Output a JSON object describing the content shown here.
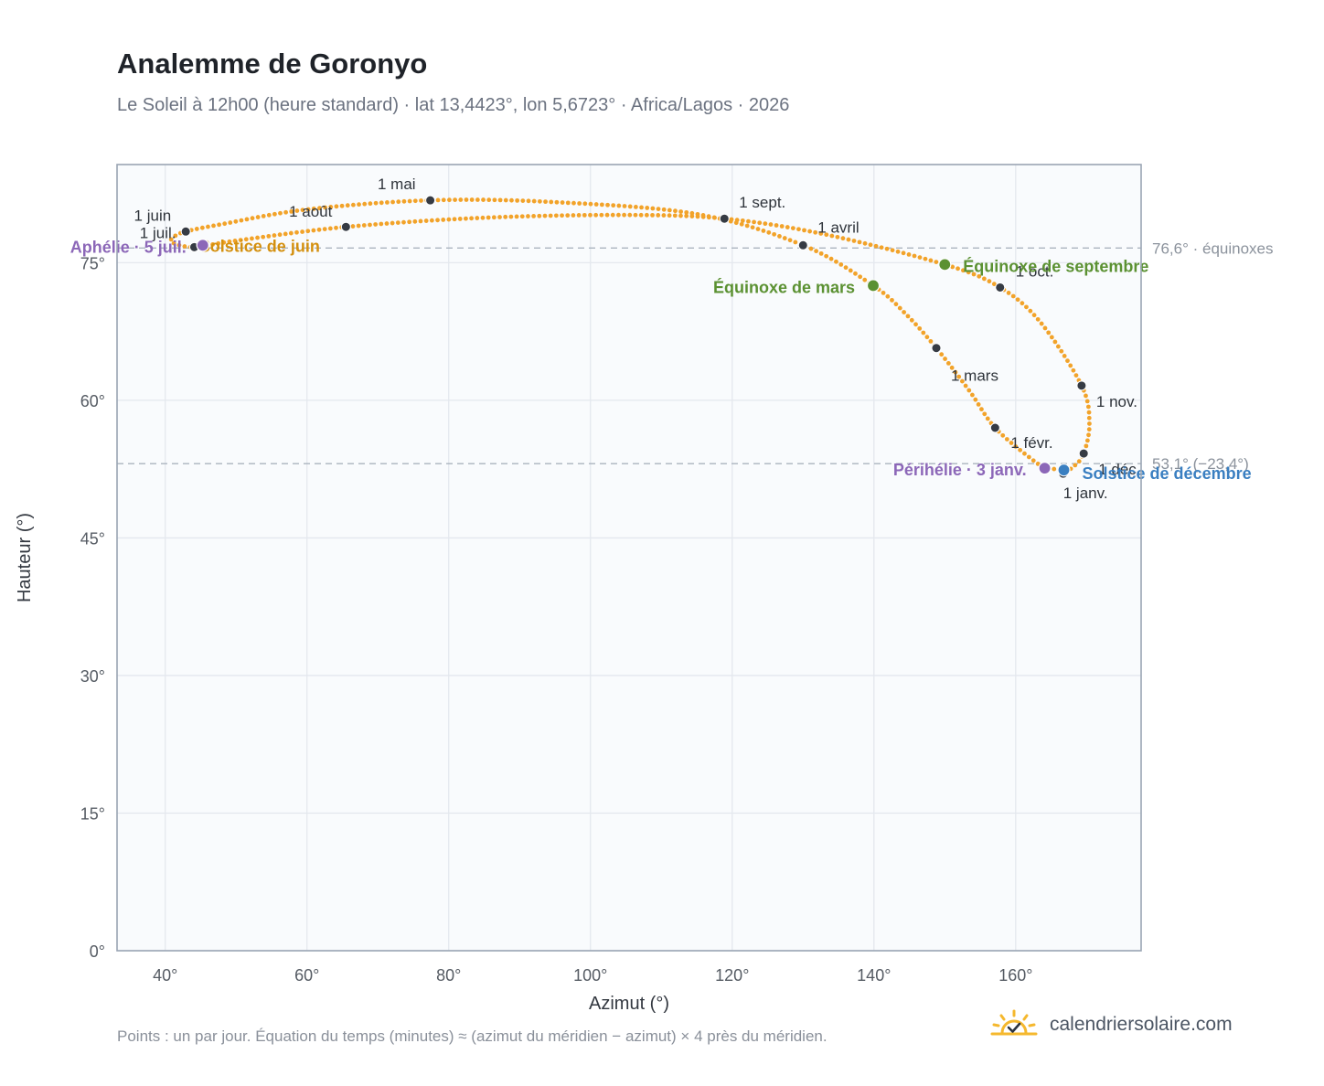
{
  "title": "Analemme de Goronyo",
  "subtitle": "Le Soleil à 12h00 (heure standard) · lat 13,4423°, lon 5,6723° · Africa/Lagos · 2026",
  "footnote": "Points : un par jour. Équation du temps (minutes) ≈ (azimut du méridien − azimut) × 4 près du méridien.",
  "brand": {
    "name": "calendriersolaire.com",
    "icon": "sun-check-icon"
  },
  "colors": {
    "curve": "#f2a32a",
    "month_marker": "#363b44",
    "equinox": "#5b9132",
    "june_solstice": "#d4900f",
    "december_solstice": "#3a7fc1",
    "apsis": "#8c67b8",
    "reference_line": "#aab4bf"
  },
  "chart_data": {
    "type": "scatter",
    "xlabel": "Azimut (°)",
    "ylabel": "Hauteur (°)",
    "xlim": [
      33.2,
      177.7
    ],
    "ylim": [
      0,
      85.7
    ],
    "xticks": [
      40,
      60,
      80,
      100,
      120,
      140,
      160
    ],
    "yticks": [
      0,
      15,
      30,
      45,
      60,
      75
    ],
    "x_tick_labels": [
      "40°",
      "60°",
      "80°",
      "100°",
      "120°",
      "140°",
      "160°"
    ],
    "y_tick_labels": [
      "0°",
      "15°",
      "30°",
      "45°",
      "60°",
      "75°"
    ],
    "grid": true,
    "reference_lines": [
      {
        "y": 76.6,
        "label": "76,6° · équinoxes"
      },
      {
        "y": 53.1,
        "label": "53,1° (−23,4°)"
      }
    ],
    "month_markers": [
      {
        "label": "1 janv.",
        "azimuth": 166.7,
        "altitude": 52.0
      },
      {
        "label": "1 févr.",
        "azimuth": 157.1,
        "altitude": 57.0
      },
      {
        "label": "1 mars",
        "azimuth": 148.8,
        "altitude": 65.7
      },
      {
        "label": "1 avril",
        "azimuth": 130.0,
        "altitude": 76.9
      },
      {
        "label": "1 mai",
        "azimuth": 77.4,
        "altitude": 81.8
      },
      {
        "label": "1 juin",
        "azimuth": 42.9,
        "altitude": 78.4
      },
      {
        "label": "1 juil.",
        "azimuth": 44.1,
        "altitude": 76.7
      },
      {
        "label": "1 août",
        "azimuth": 65.5,
        "altitude": 78.9
      },
      {
        "label": "1 sept.",
        "azimuth": 118.9,
        "altitude": 79.8
      },
      {
        "label": "1 oct.",
        "azimuth": 157.8,
        "altitude": 72.3
      },
      {
        "label": "1 nov.",
        "azimuth": 169.3,
        "altitude": 61.6
      },
      {
        "label": "1 déc.",
        "azimuth": 169.6,
        "altitude": 54.2
      }
    ],
    "events": [
      {
        "label": "Équinoxe de mars",
        "azimuth": 139.9,
        "altitude": 72.5,
        "color_key": "equinox"
      },
      {
        "label": "Équinoxe de septembre",
        "azimuth": 150.0,
        "altitude": 74.8,
        "color_key": "equinox"
      },
      {
        "label": "Solstice de juin",
        "azimuth": 45.3,
        "altitude": 76.9,
        "color_key": "june_solstice"
      },
      {
        "label": "Solstice de décembre",
        "azimuth": 166.8,
        "altitude": 52.4,
        "color_key": "december_solstice"
      },
      {
        "label": "Périhélie · 3 janv.",
        "azimuth": 164.1,
        "altitude": 52.6,
        "color_key": "apsis"
      },
      {
        "label": "Aphélie · 5 juil.",
        "azimuth": 45.3,
        "altitude": 76.9,
        "color_key": "apsis"
      }
    ],
    "path_control": [
      {
        "azimuth": 167.0,
        "altitude": 52.4
      },
      {
        "azimuth": 164.3,
        "altitude": 52.7
      },
      {
        "azimuth": 162.4,
        "altitude": 53.5
      },
      {
        "azimuth": 157.1,
        "altitude": 57.0
      },
      {
        "azimuth": 153.5,
        "altitude": 61.0
      },
      {
        "azimuth": 148.8,
        "altitude": 65.7
      },
      {
        "azimuth": 144.5,
        "altitude": 69.4
      },
      {
        "azimuth": 139.9,
        "altitude": 72.5
      },
      {
        "azimuth": 130.0,
        "altitude": 76.9
      },
      {
        "azimuth": 115.0,
        "altitude": 80.3
      },
      {
        "azimuth": 95.0,
        "altitude": 81.6
      },
      {
        "azimuth": 77.4,
        "altitude": 81.8
      },
      {
        "azimuth": 60.0,
        "altitude": 80.8
      },
      {
        "azimuth": 48.0,
        "altitude": 79.2
      },
      {
        "azimuth": 42.9,
        "altitude": 78.4
      },
      {
        "azimuth": 41.2,
        "altitude": 77.8
      },
      {
        "azimuth": 41.0,
        "altitude": 77.2
      },
      {
        "azimuth": 44.1,
        "altitude": 76.7
      },
      {
        "azimuth": 50.0,
        "altitude": 77.4
      },
      {
        "azimuth": 65.5,
        "altitude": 78.9
      },
      {
        "azimuth": 85.0,
        "altitude": 79.9
      },
      {
        "azimuth": 105.0,
        "altitude": 80.2
      },
      {
        "azimuth": 118.9,
        "altitude": 79.8
      },
      {
        "azimuth": 133.0,
        "altitude": 78.1
      },
      {
        "azimuth": 150.0,
        "altitude": 74.8
      },
      {
        "azimuth": 157.8,
        "altitude": 72.3
      },
      {
        "azimuth": 163.5,
        "altitude": 68.5
      },
      {
        "azimuth": 169.3,
        "altitude": 61.6
      },
      {
        "azimuth": 170.4,
        "altitude": 57.5
      },
      {
        "azimuth": 169.6,
        "altitude": 54.2
      },
      {
        "azimuth": 168.2,
        "altitude": 52.8
      },
      {
        "azimuth": 167.0,
        "altitude": 52.4
      }
    ]
  }
}
